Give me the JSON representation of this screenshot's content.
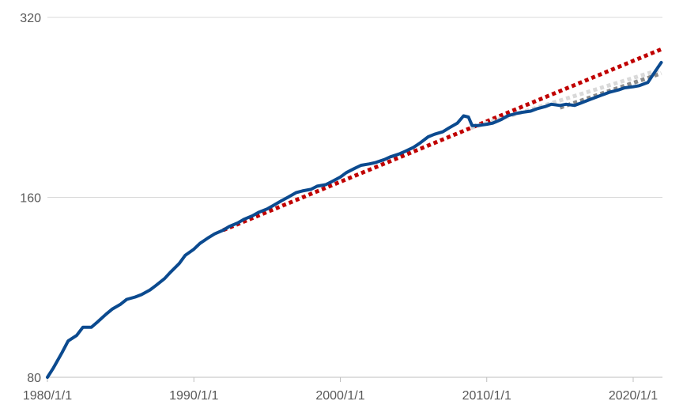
{
  "chart_data": {
    "type": "line",
    "title": "",
    "xlabel": "",
    "ylabel": "",
    "y_scale": "log2",
    "ylim": [
      80,
      320
    ],
    "xlim": [
      "1980-01-01",
      "2021-12-31"
    ],
    "y_ticks": [
      80,
      160,
      320
    ],
    "y_tick_labels": [
      "80",
      "160",
      "320"
    ],
    "x_ticks": [
      "1980-01-01",
      "1990-01-01",
      "2000-01-01",
      "2010-01-01",
      "2020-01-01"
    ],
    "x_tick_labels": [
      "1980/1/1",
      "1990/1/1",
      "2000/1/1",
      "2010/1/1",
      "2020/1/1"
    ],
    "grid": "horizontal",
    "legend": "none",
    "series": [
      {
        "style": "solid",
        "color": "#0b4a8f",
        "points": [
          [
            "1980-01-01",
            80
          ],
          [
            "1980-06-01",
            83
          ],
          [
            "1981-01-01",
            88
          ],
          [
            "1981-06-01",
            92
          ],
          [
            "1982-01-01",
            94
          ],
          [
            "1982-06-01",
            97
          ],
          [
            "1983-01-01",
            97
          ],
          [
            "1983-06-01",
            99
          ],
          [
            "1984-01-01",
            102
          ],
          [
            "1984-06-01",
            104
          ],
          [
            "1985-01-01",
            106
          ],
          [
            "1985-06-01",
            108
          ],
          [
            "1986-01-01",
            109
          ],
          [
            "1986-06-01",
            110
          ],
          [
            "1987-01-01",
            112
          ],
          [
            "1987-06-01",
            114
          ],
          [
            "1988-01-01",
            117
          ],
          [
            "1988-06-01",
            120
          ],
          [
            "1989-01-01",
            124
          ],
          [
            "1989-06-01",
            128
          ],
          [
            "1990-01-01",
            131
          ],
          [
            "1990-06-01",
            134
          ],
          [
            "1991-01-01",
            137
          ],
          [
            "1991-06-01",
            139
          ],
          [
            "1992-01-01",
            141
          ],
          [
            "1992-06-01",
            143
          ],
          [
            "1993-01-01",
            145
          ],
          [
            "1993-06-01",
            147
          ],
          [
            "1994-01-01",
            149
          ],
          [
            "1994-06-01",
            151
          ],
          [
            "1995-01-01",
            153
          ],
          [
            "1995-06-01",
            155
          ],
          [
            "1996-01-01",
            158
          ],
          [
            "1996-06-01",
            160
          ],
          [
            "1997-01-01",
            163
          ],
          [
            "1997-06-01",
            164
          ],
          [
            "1998-01-01",
            165
          ],
          [
            "1998-06-01",
            167
          ],
          [
            "1999-01-01",
            168
          ],
          [
            "1999-06-01",
            170
          ],
          [
            "2000-01-01",
            173
          ],
          [
            "2000-06-01",
            176
          ],
          [
            "2001-01-01",
            179
          ],
          [
            "2001-06-01",
            181
          ],
          [
            "2002-01-01",
            182
          ],
          [
            "2002-06-01",
            183
          ],
          [
            "2003-01-01",
            185
          ],
          [
            "2003-06-01",
            187
          ],
          [
            "2004-01-01",
            189
          ],
          [
            "2004-06-01",
            191
          ],
          [
            "2005-01-01",
            194
          ],
          [
            "2005-06-01",
            197
          ],
          [
            "2006-01-01",
            202
          ],
          [
            "2006-06-01",
            204
          ],
          [
            "2007-01-01",
            206
          ],
          [
            "2007-06-01",
            209
          ],
          [
            "2008-01-01",
            213
          ],
          [
            "2008-06-01",
            219
          ],
          [
            "2008-10-01",
            218
          ],
          [
            "2009-01-01",
            211
          ],
          [
            "2009-06-01",
            211
          ],
          [
            "2010-01-01",
            212
          ],
          [
            "2010-06-01",
            213
          ],
          [
            "2011-01-01",
            216
          ],
          [
            "2011-06-01",
            219
          ],
          [
            "2012-01-01",
            221
          ],
          [
            "2012-06-01",
            222
          ],
          [
            "2013-01-01",
            223
          ],
          [
            "2013-06-01",
            225
          ],
          [
            "2014-01-01",
            227
          ],
          [
            "2014-06-01",
            229
          ],
          [
            "2015-01-01",
            228
          ],
          [
            "2015-06-01",
            229
          ],
          [
            "2016-01-01",
            228
          ],
          [
            "2016-06-01",
            230
          ],
          [
            "2017-01-01",
            233
          ],
          [
            "2017-06-01",
            235
          ],
          [
            "2018-01-01",
            238
          ],
          [
            "2018-06-01",
            240
          ],
          [
            "2019-01-01",
            242
          ],
          [
            "2019-06-01",
            244
          ],
          [
            "2020-01-01",
            245
          ],
          [
            "2020-06-01",
            246
          ],
          [
            "2021-01-01",
            249
          ],
          [
            "2021-06-01",
            258
          ],
          [
            "2021-12-01",
            269
          ]
        ]
      },
      {
        "style": "dotted",
        "color": "#c00000",
        "points": [
          [
            "1992-01-01",
            141
          ],
          [
            "2021-12-01",
            283
          ]
        ]
      },
      {
        "style": "dotted",
        "color": "#d9d9d9",
        "points": [
          [
            "2008-12-01",
            209
          ],
          [
            "2021-12-01",
            262
          ]
        ]
      },
      {
        "style": "dotted",
        "color": "#8c8c8c",
        "points": [
          [
            "2015-01-01",
            226
          ],
          [
            "2021-12-01",
            258
          ]
        ]
      }
    ]
  }
}
